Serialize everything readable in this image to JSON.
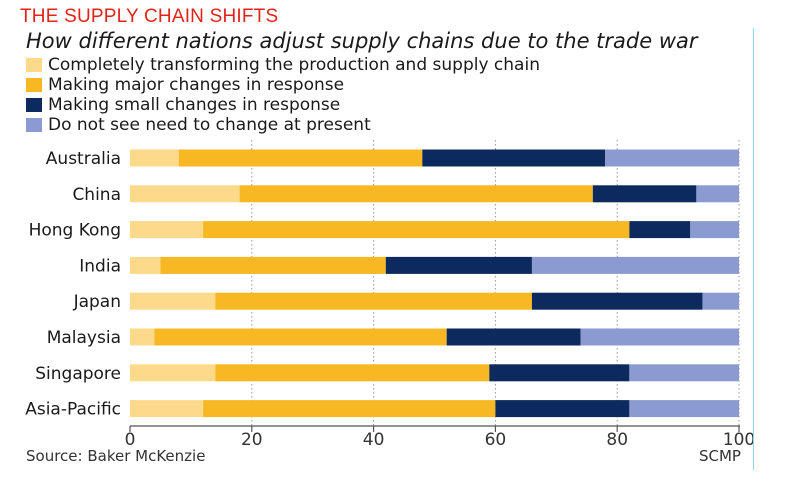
{
  "header": {
    "kicker": "THE SUPPLY CHAIN SHIFTS",
    "title": "How different nations adjust supply chains due to the trade war"
  },
  "footer": {
    "source": "Source: Baker McKenzie",
    "credit": "SCMP"
  },
  "colors": {
    "kicker": "#e2231a",
    "completely": "#fdd98b",
    "major": "#f8b824",
    "small": "#0c2a5e",
    "no_need": "#8b9bd2"
  },
  "chart_data": {
    "type": "bar",
    "orientation": "horizontal",
    "stacked": true,
    "categories": [
      "Australia",
      "China",
      "Hong Kong",
      "India",
      "Japan",
      "Malaysia",
      "Singapore",
      "Asia-Pacific"
    ],
    "series": [
      {
        "name": "Completely transforming the production and supply chain",
        "color": "#fdd98b",
        "values": [
          8,
          18,
          12,
          5,
          14,
          4,
          14,
          12
        ]
      },
      {
        "name": "Making major changes in response",
        "color": "#f8b824",
        "values": [
          40,
          58,
          70,
          37,
          52,
          48,
          45,
          48
        ]
      },
      {
        "name": "Making small changes in response",
        "color": "#0c2a5e",
        "values": [
          30,
          17,
          10,
          24,
          28,
          22,
          23,
          22
        ]
      },
      {
        "name": "Do not see need to change at present",
        "color": "#8b9bd2",
        "values": [
          22,
          7,
          8,
          34,
          6,
          26,
          18,
          18
        ]
      }
    ],
    "xlim": [
      0,
      100
    ],
    "xticks": [
      0,
      20,
      40,
      60,
      80,
      100
    ],
    "grid": true,
    "legend_position": "top-left"
  }
}
